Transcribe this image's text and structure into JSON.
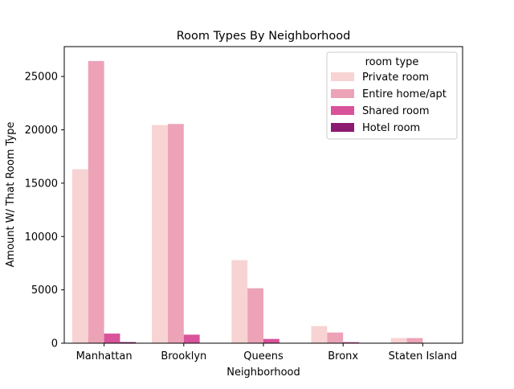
{
  "chart_data": {
    "type": "bar",
    "title": "Room Types By Neighborhood",
    "xlabel": "Neighborhood",
    "ylabel": "Amount W/ That Room Type",
    "categories": [
      "Manhattan",
      "Brooklyn",
      "Queens",
      "Bronx",
      "Staten Island"
    ],
    "ylim": [
      0,
      27800
    ],
    "yticks": [
      0,
      5000,
      10000,
      15000,
      20000,
      25000
    ],
    "grid": false,
    "legend": {
      "title": "room type",
      "placement": "top-right"
    },
    "series": [
      {
        "name": "Private room",
        "color": "#f8d3d3",
        "values": [
          16300,
          20450,
          7780,
          1600,
          480
        ]
      },
      {
        "name": "Entire home/apt",
        "color": "#eca3b7",
        "values": [
          26450,
          20550,
          5150,
          1000,
          480
        ]
      },
      {
        "name": "Shared room",
        "color": "#d9539b",
        "values": [
          900,
          800,
          400,
          100,
          10
        ]
      },
      {
        "name": "Hotel room",
        "color": "#8c1a70",
        "values": [
          100,
          15,
          5,
          0,
          0
        ]
      }
    ]
  }
}
